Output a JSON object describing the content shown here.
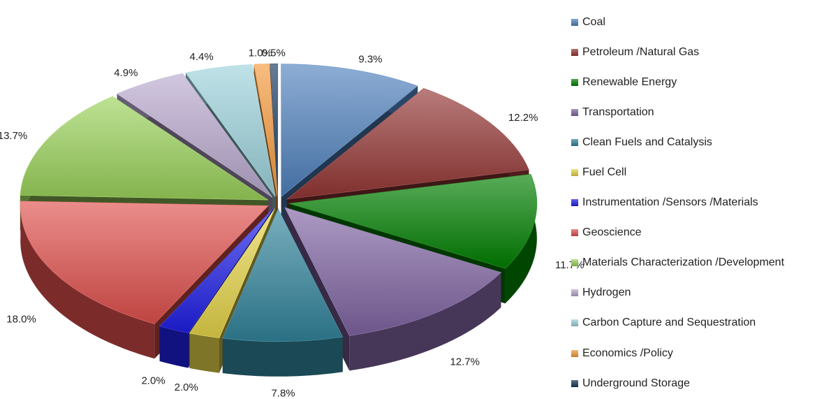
{
  "chart_data": {
    "type": "pie",
    "title": "",
    "style": "3d-exploded",
    "legend_position": "right",
    "slices": [
      {
        "label": "Coal",
        "value": 9.3,
        "value_label": "9.3%",
        "color": "#4f81bd"
      },
      {
        "label": "Petroleum /Natural Gas",
        "value": 12.2,
        "value_label": "12.2%",
        "color": "#943634"
      },
      {
        "label": "Renewable Energy",
        "value": 11.7,
        "value_label": "11.7%",
        "color": "#008000"
      },
      {
        "label": "Transportation",
        "value": 12.7,
        "value_label": "12.7%",
        "color": "#8064a2"
      },
      {
        "label": "Clean Fuels and Catalysis",
        "value": 7.8,
        "value_label": "7.8%",
        "color": "#31849b"
      },
      {
        "label": "Fuel Cell",
        "value": 2.0,
        "value_label": "2.0%",
        "color": "#e6d54a"
      },
      {
        "label": "Instrumentation /Sensors /Materials",
        "value": 2.0,
        "value_label": "2.0%",
        "color": "#1f1fe6"
      },
      {
        "label": "Geoscience",
        "value": 18.0,
        "value_label": "18.0%",
        "color": "#e0504d"
      },
      {
        "label": "Materials Characterization /Development",
        "value": 13.7,
        "value_label": "13.7%",
        "color": "#9bd25a"
      },
      {
        "label": "Hydrogen",
        "value": 4.9,
        "value_label": "4.9%",
        "color": "#b9a9cf"
      },
      {
        "label": "Carbon Capture and Sequestration",
        "value": 4.4,
        "value_label": "4.4%",
        "color": "#9dd3dc"
      },
      {
        "label": "Economics /Policy",
        "value": 1.0,
        "value_label": "1.0%",
        "color": "#f59a3c"
      },
      {
        "label": "Underground Storage",
        "value": 0.5,
        "value_label": "0.5%",
        "color": "#17375e"
      }
    ]
  }
}
